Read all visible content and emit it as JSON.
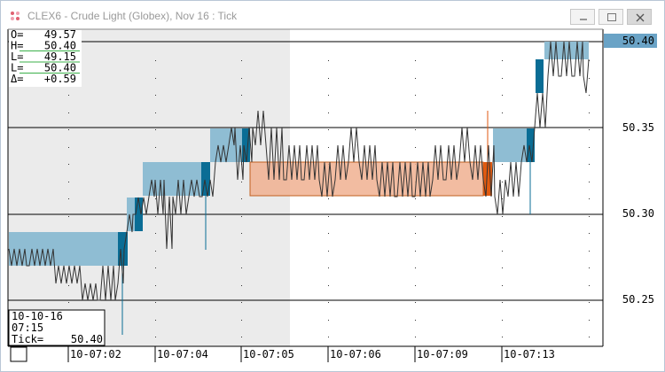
{
  "window": {
    "title": "CLEX6 - Crude Light (Globex), Nov 16 : Tick",
    "controls": [
      "minimize-icon",
      "maximize-icon",
      "close-icon"
    ]
  },
  "ohlc": {
    "rows": [
      {
        "label": "O=",
        "value": "49.57"
      },
      {
        "label": "H=",
        "value": "50.40"
      },
      {
        "label": "L=",
        "value": "49.15"
      },
      {
        "label": "L=",
        "value": "50.40"
      },
      {
        "label": "Δ=",
        "value": "+0.59"
      }
    ]
  },
  "cursor_info": {
    "date": "10-10-16",
    "time": "07:15",
    "tick_label": "Tick=",
    "tick_value": "50.40"
  },
  "price_axis": {
    "labels": [
      "50.40",
      "50.35",
      "50.30",
      "50.25"
    ],
    "current_price": "50.40",
    "current_price_color": "#6aa3c6"
  },
  "time_axis": {
    "labels": [
      "10-07:02",
      "10-07:04",
      "10-07:05",
      "10-07:06",
      "10-07:09",
      "10-07:13"
    ]
  },
  "colors": {
    "profile_blue": "#8fbdd3",
    "profile_blue_dark": "#0a6d95",
    "highlight_orange": "#f0b090",
    "highlight_orange_dark": "#e05a10",
    "shaded_region": "#ebebeb",
    "price_line": "#333333"
  }
}
